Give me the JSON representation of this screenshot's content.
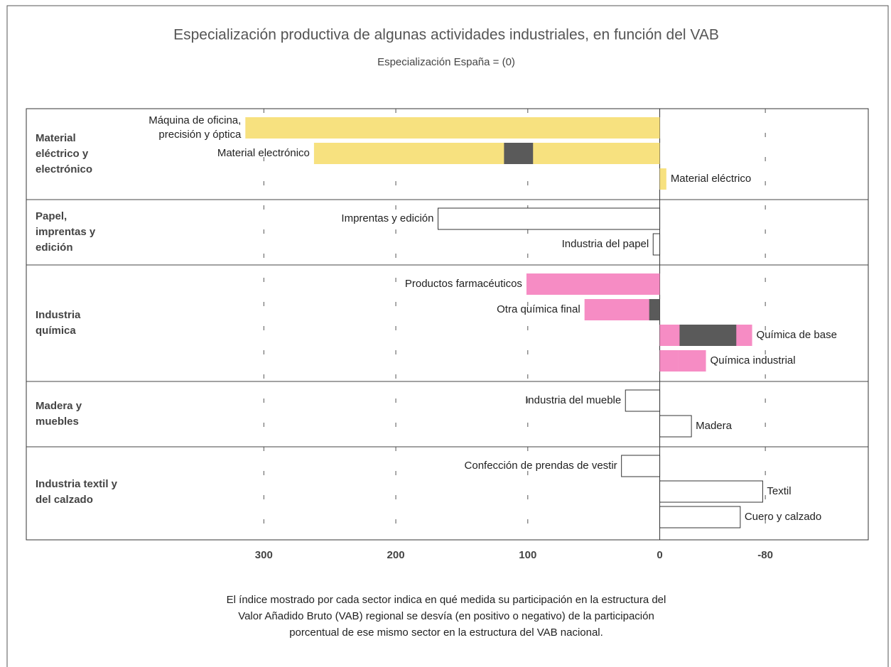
{
  "chart_data": {
    "type": "bar",
    "orientation": "horizontal",
    "title": "Especialización productiva de algunas actividades industriales, en función del VAB",
    "subtitle": "Especialización España = (0)",
    "xlim": [
      480,
      -158
    ],
    "xticks": [
      300,
      200,
      100,
      0,
      -80
    ],
    "grid": true,
    "groups": [
      {
        "label": [
          "Material",
          "eléctrico y",
          "electrónico"
        ],
        "bars": [
          {
            "name": [
              "Máquina de oficina,",
              "precisión y óptica"
            ],
            "segments": [
              {
                "from": 0,
                "to": 314,
                "color": "#f7e17f"
              }
            ]
          },
          {
            "name": [
              "Material electrónico"
            ],
            "segments": [
              {
                "from": 0,
                "to": 262,
                "color": "#f7e17f"
              },
              {
                "from": 96,
                "to": 118,
                "color": "#5a5a5a"
              }
            ]
          },
          {
            "name": [
              "Material eléctrico"
            ],
            "segments": [
              {
                "from": 0,
                "to": -5,
                "color": "#f7e17f"
              }
            ]
          }
        ]
      },
      {
        "label": [
          "Papel,",
          "imprentas y",
          "edición"
        ],
        "bars": [
          {
            "name": [
              "Imprentas y edición"
            ],
            "segments": [
              {
                "from": 0,
                "to": 168,
                "color": "#ffffff"
              }
            ]
          },
          {
            "name": [
              "Industria del papel"
            ],
            "segments": [
              {
                "from": 0,
                "to": 5,
                "color": "#ffffff"
              }
            ]
          }
        ]
      },
      {
        "label": [
          "Industria",
          "química"
        ],
        "bars": [
          {
            "name": [
              "Productos farmacéuticos"
            ],
            "segments": [
              {
                "from": 0,
                "to": 101,
                "color": "#f68cc4"
              }
            ]
          },
          {
            "name": [
              "Otra química final"
            ],
            "segments": [
              {
                "from": 0,
                "to": 57,
                "color": "#f68cc4"
              },
              {
                "from": 0,
                "to": 8,
                "color": "#5a5a5a"
              }
            ]
          },
          {
            "name": [
              "Química de base"
            ],
            "segments": [
              {
                "from": 0,
                "to": -70,
                "color": "#f68cc4"
              },
              {
                "from": -15,
                "to": -58,
                "color": "#5a5a5a"
              }
            ]
          },
          {
            "name": [
              "Química industrial"
            ],
            "segments": [
              {
                "from": 0,
                "to": -14,
                "color": "#f68cc4"
              },
              {
                "from": -14,
                "to": -35,
                "color": "#f68cc4"
              }
            ]
          }
        ]
      },
      {
        "label": [
          "Madera y",
          "muebles"
        ],
        "bars": [
          {
            "name": [
              "Industria del mueble"
            ],
            "segments": [
              {
                "from": 0,
                "to": 26,
                "color": "#ffffff"
              }
            ]
          },
          {
            "name": [
              "Madera"
            ],
            "segments": [
              {
                "from": 0,
                "to": -24,
                "color": "#ffffff"
              }
            ]
          }
        ]
      },
      {
        "label": [
          "Industria textil y",
          "del calzado"
        ],
        "bars": [
          {
            "name": [
              "Confección de prendas de vestir"
            ],
            "segments": [
              {
                "from": 0,
                "to": 29,
                "color": "#ffffff"
              }
            ]
          },
          {
            "name": [
              "Textil"
            ],
            "segments": [
              {
                "from": 0,
                "to": -78,
                "color": "#ffffff"
              }
            ]
          },
          {
            "name": [
              "Cuero y calzado"
            ],
            "segments": [
              {
                "from": 0,
                "to": -61,
                "color": "#ffffff"
              }
            ]
          }
        ]
      }
    ],
    "footnote": [
      "El índice mostrado por cada sector indica en qué medida su participación en la estructura del",
      "Valor Añadido Bruto (VAB) regional se desvía (en positivo o negativo) de la participación",
      "porcentual de ese mismo sector en la estructura del VAB nacional."
    ]
  }
}
